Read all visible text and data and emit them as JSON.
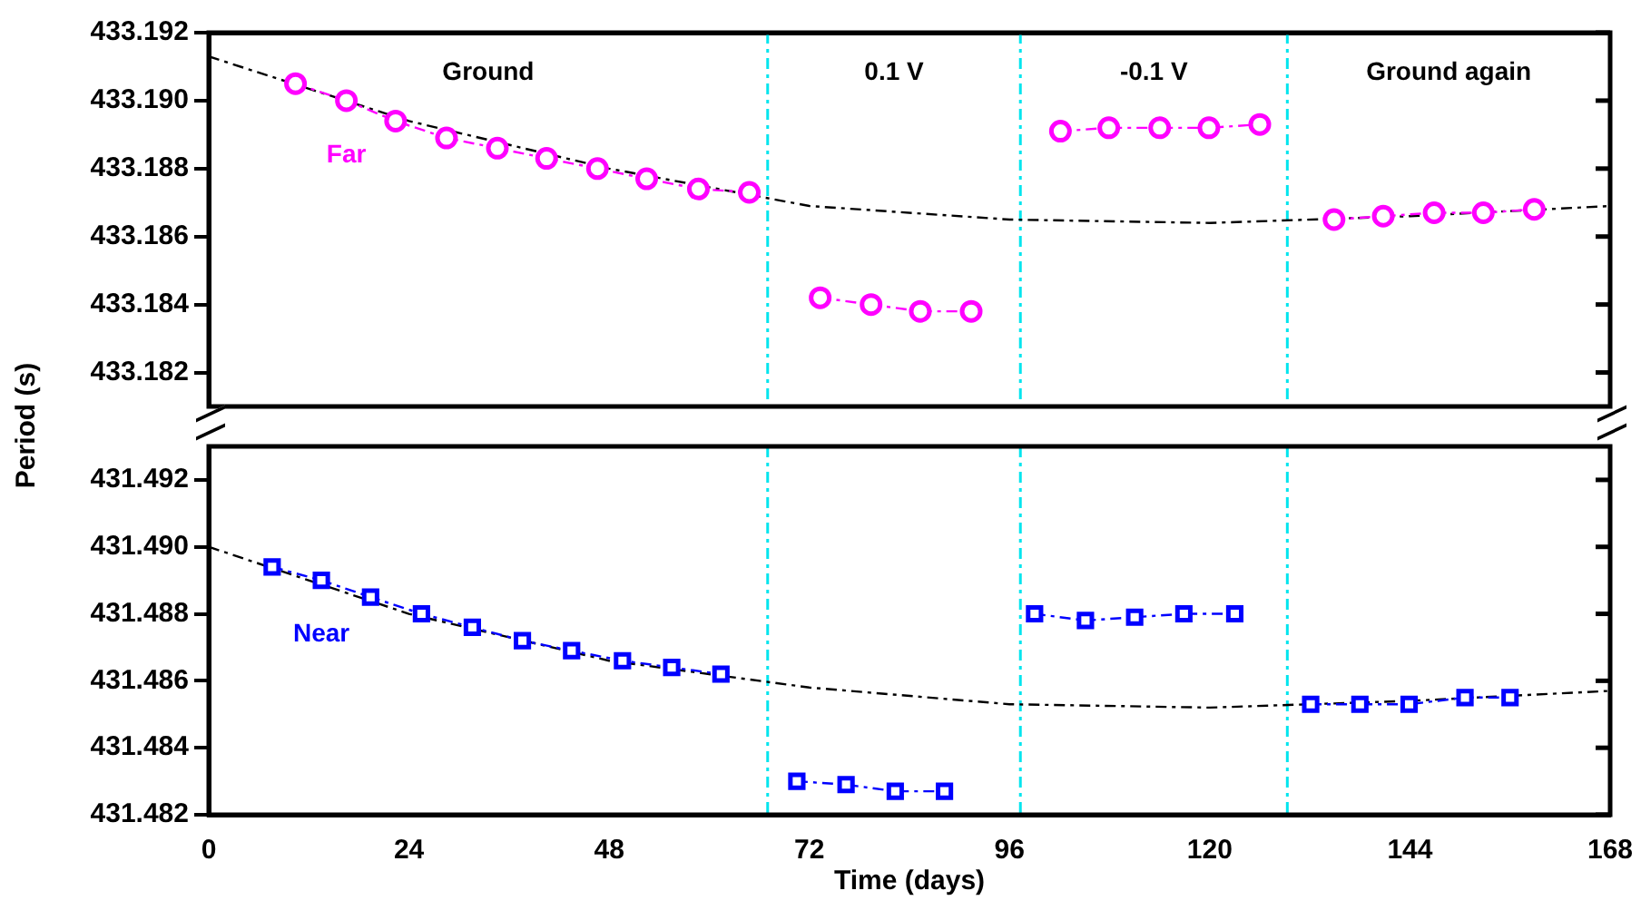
{
  "chart_data": [
    {
      "type": "line",
      "ylabel": "Period (s)",
      "xlim": [
        0,
        168
      ],
      "xticks": [
        0,
        24,
        48,
        72,
        96,
        120,
        144,
        168
      ],
      "ylim": [
        433.181,
        433.192
      ],
      "yticks": [
        {
          "value": 433.182,
          "label": "433.182"
        },
        {
          "value": 433.184,
          "label": "433.184"
        },
        {
          "value": 433.186,
          "label": "433.186"
        },
        {
          "value": 433.188,
          "label": "433.188"
        },
        {
          "value": 433.19,
          "label": "433.190"
        },
        {
          "value": 433.192,
          "label": "433.192"
        }
      ],
      "tick_labels": "y",
      "grid": false,
      "legend": false,
      "series": [
        {
          "name": "Far",
          "color": "#ff00ff",
          "marker": "circle",
          "line_style": "dashed",
          "x": [
            10.4,
            16.5,
            22.4,
            28.5,
            34.6,
            40.5,
            46.6,
            52.5,
            58.7,
            64.8
          ],
          "values": [
            433.1905,
            433.19,
            433.1894,
            433.1889,
            433.1886,
            433.1883,
            433.188,
            433.1877,
            433.1874,
            433.1873
          ]
        },
        {
          "color": "#ff00ff",
          "marker": "circle",
          "line_style": "dashed",
          "x": [
            73.3,
            79.4,
            85.3,
            91.4
          ],
          "values": [
            433.1842,
            433.184,
            433.1838,
            433.1838
          ]
        },
        {
          "color": "#ff00ff",
          "marker": "circle",
          "line_style": "dashed",
          "x": [
            102.1,
            107.9,
            114,
            119.9,
            126
          ],
          "values": [
            433.1891,
            433.1892,
            433.1892,
            433.1892,
            433.1893
          ]
        },
        {
          "color": "#ff00ff",
          "marker": "circle",
          "line_style": "dashed",
          "x": [
            134.9,
            140.8,
            146.9,
            152.8,
            158.9
          ],
          "values": [
            433.1865,
            433.1866,
            433.1867,
            433.1867,
            433.1868
          ]
        },
        {
          "color": "#000000",
          "marker": "none",
          "line_style": "dashed",
          "x": [
            0,
            24,
            48,
            72,
            96,
            120,
            144,
            168
          ],
          "values": [
            433.1913,
            433.1894,
            433.188,
            433.1869,
            433.1865,
            433.1864,
            433.1866,
            433.1869
          ]
        }
      ],
      "ref_lines": [
        {
          "axis": "x",
          "value": 67,
          "color": "#00e5ee",
          "line_style": "dashed"
        },
        {
          "axis": "x",
          "value": 97.3,
          "color": "#00e5ee",
          "line_style": "dashed"
        },
        {
          "axis": "x",
          "value": 129.3,
          "color": "#00e5ee",
          "line_style": "dashed"
        }
      ],
      "annotations": [
        "Ground",
        "0.1 V",
        "-0.1 V",
        "Ground again"
      ]
    },
    {
      "type": "line",
      "xlabel": "Time (days)",
      "xlim": [
        0,
        168
      ],
      "xticks": [
        0,
        24,
        48,
        72,
        96,
        120,
        144,
        168
      ],
      "ylim": [
        431.482,
        431.493
      ],
      "yticks": [
        {
          "value": 431.482,
          "label": "431.482"
        },
        {
          "value": 431.484,
          "label": "431.484"
        },
        {
          "value": 431.486,
          "label": "431.486"
        },
        {
          "value": 431.488,
          "label": "431.488"
        },
        {
          "value": 431.49,
          "label": "431.490"
        },
        {
          "value": 431.492,
          "label": "431.492"
        }
      ],
      "grid": false,
      "legend": false,
      "series": [
        {
          "name": "Near",
          "color": "#0000ff",
          "marker": "square",
          "line_style": "dashed",
          "x": [
            7.6,
            13.5,
            19.4,
            25.5,
            31.6,
            37.6,
            43.5,
            49.6,
            55.5,
            61.4
          ],
          "values": [
            431.4894,
            431.489,
            431.4885,
            431.488,
            431.4876,
            431.4872,
            431.4869,
            431.4866,
            431.4864,
            431.4862
          ]
        },
        {
          "color": "#0000ff",
          "marker": "square",
          "line_style": "dashed",
          "x": [
            70.5,
            76.4,
            82.3,
            88.2
          ],
          "values": [
            431.483,
            431.4829,
            431.4827,
            431.4827
          ]
        },
        {
          "color": "#0000ff",
          "marker": "square",
          "line_style": "dashed",
          "x": [
            99,
            105.1,
            111,
            116.9,
            123
          ],
          "values": [
            431.488,
            431.4878,
            431.4879,
            431.488,
            431.488
          ]
        },
        {
          "color": "#0000ff",
          "marker": "square",
          "line_style": "dashed",
          "x": [
            132.1,
            138,
            143.9,
            150.6,
            156
          ],
          "values": [
            431.4853,
            431.4853,
            431.4853,
            431.4855,
            431.4855
          ]
        },
        {
          "color": "#000000",
          "marker": "none",
          "line_style": "dashed",
          "x": [
            0,
            24,
            48,
            72,
            96,
            120,
            144,
            168
          ],
          "values": [
            431.49,
            431.488,
            431.4866,
            431.4858,
            431.4853,
            431.4852,
            431.4854,
            431.4857
          ]
        }
      ],
      "ref_lines": [
        {
          "axis": "x",
          "value": 67,
          "color": "#00e5ee",
          "line_style": "dashed"
        },
        {
          "axis": "x",
          "value": 97.3,
          "color": "#00e5ee",
          "line_style": "dashed"
        },
        {
          "axis": "x",
          "value": 129.3,
          "color": "#00e5ee",
          "line_style": "dashed"
        }
      ]
    }
  ]
}
